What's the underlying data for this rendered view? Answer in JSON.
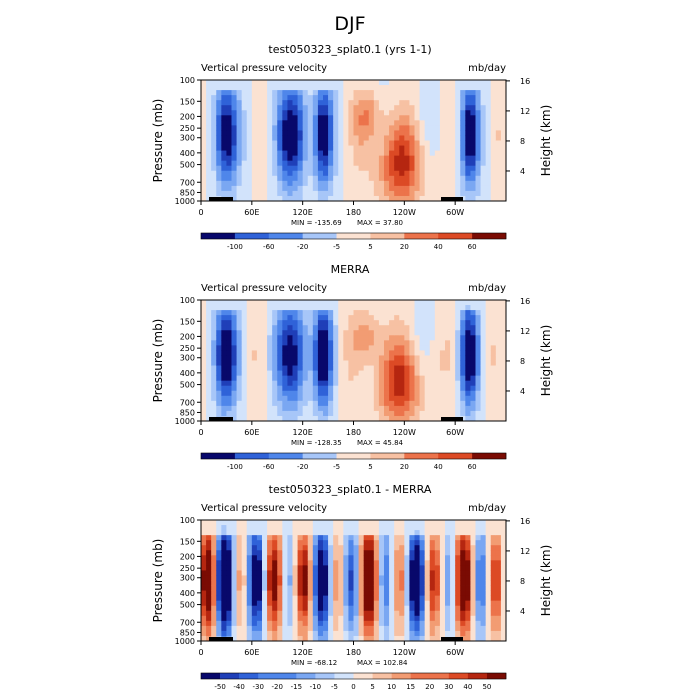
{
  "page": {
    "title": "DJF"
  },
  "colors": {
    "cool": [
      "#08086b",
      "#1f3fb8",
      "#2f62d8",
      "#4f86ea",
      "#7aa7f2",
      "#a7c6f8",
      "#d2e3fb"
    ],
    "warm": [
      "#fbe2d2",
      "#f7c1a3",
      "#f29c73",
      "#ec734b",
      "#dc4a25",
      "#b52610",
      "#7a0b03"
    ],
    "land": "#000000"
  },
  "chart_data": [
    {
      "type": "heatmap",
      "title": "test050323_splat0.1 (yrs 1-1)",
      "left_label": "Vertical pressure velocity",
      "right_label": "mb/day",
      "ylabel": "Pressure (mb)",
      "y2label": "Height (km)",
      "yticks": [
        "100",
        "150",
        "200",
        "250",
        "300",
        "400",
        "500",
        "700",
        "850",
        "1000"
      ],
      "y2ticks": [
        "16",
        "12",
        "8",
        "4"
      ],
      "xticks": [
        "0",
        "60E",
        "120E",
        "180",
        "120W",
        "60W"
      ],
      "min_label": "MIN = -135.69",
      "max_label": "MAX =  37.80",
      "colorbar_labels": [
        "-100",
        "-60",
        "-20",
        "-5",
        "5",
        "20",
        "40",
        "60"
      ]
    },
    {
      "type": "heatmap",
      "title": "MERRA",
      "left_label": "Vertical pressure velocity",
      "right_label": "mb/day",
      "ylabel": "Pressure (mb)",
      "y2label": "Height (km)",
      "yticks": [
        "100",
        "150",
        "200",
        "250",
        "300",
        "400",
        "500",
        "700",
        "850",
        "1000"
      ],
      "y2ticks": [
        "16",
        "12",
        "8",
        "4"
      ],
      "xticks": [
        "0",
        "60E",
        "120E",
        "180",
        "120W",
        "60W"
      ],
      "min_label": "MIN = -128.35",
      "max_label": "MAX =  45.84",
      "colorbar_labels": [
        "-100",
        "-60",
        "-20",
        "-5",
        "5",
        "20",
        "40",
        "60"
      ]
    },
    {
      "type": "heatmap",
      "title": "test050323_splat0.1 - MERRA",
      "left_label": "Vertical pressure velocity",
      "right_label": "mb/day",
      "ylabel": "Pressure (mb)",
      "y2label": "Height (km)",
      "yticks": [
        "100",
        "150",
        "200",
        "250",
        "300",
        "400",
        "500",
        "700",
        "850",
        "1000"
      ],
      "y2ticks": [
        "16",
        "12",
        "8",
        "4"
      ],
      "xticks": [
        "0",
        "60E",
        "120E",
        "180",
        "120W",
        "60W"
      ],
      "min_label": "MIN = -68.12",
      "max_label": "MAX = 102.84",
      "colorbar_labels": [
        "-50",
        "-40",
        "-30",
        "-20",
        "-15",
        "-10",
        "-5",
        "0",
        "5",
        "10",
        "15",
        "20",
        "30",
        "40",
        "50"
      ]
    }
  ]
}
